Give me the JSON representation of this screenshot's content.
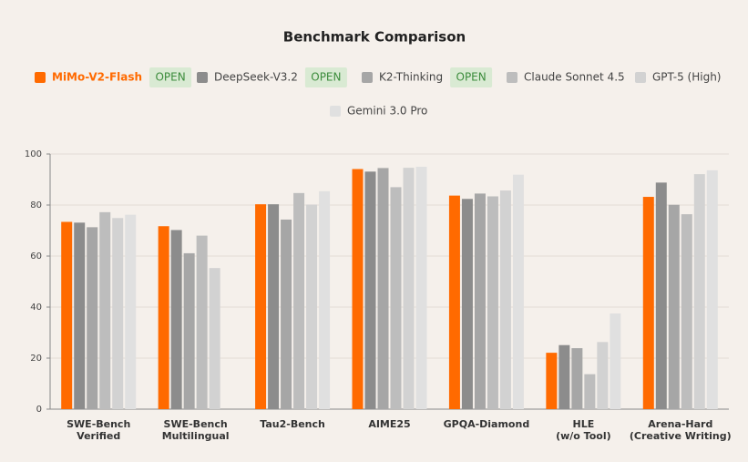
{
  "chart_data": {
    "type": "bar",
    "title": "Benchmark Comparison",
    "categories": [
      "SWE-Bench\nVerified",
      "SWE-Bench\nMultilingual",
      "Tau2-Bench",
      "AIME25",
      "GPQA-Diamond",
      "HLE\n(w/o Tool)",
      "Arena-Hard\n(Creative Writing)"
    ],
    "series": [
      {
        "name": "MiMo-V2-Flash",
        "color": "#ff6a00",
        "badge": "OPEN",
        "values": [
          73.4,
          71.7,
          80.3,
          94.1,
          83.7,
          22.1,
          83.2
        ]
      },
      {
        "name": "DeepSeek-V3.2",
        "color": "#8c8c8c",
        "badge": "OPEN",
        "values": [
          73.1,
          70.2,
          80.3,
          93.1,
          82.4,
          25.1,
          88.8
        ]
      },
      {
        "name": "K2-Thinking",
        "color": "#a6a6a6",
        "badge": "OPEN",
        "values": [
          71.3,
          61.1,
          74.3,
          94.5,
          84.5,
          23.9,
          80.1
        ]
      },
      {
        "name": "Claude Sonnet 4.5",
        "color": "#bdbdbd",
        "values": [
          77.2,
          68.0,
          84.7,
          87.0,
          83.4,
          13.7,
          76.4
        ]
      },
      {
        "name": "GPT-5 (High)",
        "color": "#d2d2d2",
        "values": [
          74.9,
          55.3,
          80.2,
          94.6,
          85.7,
          26.3,
          92.1
        ]
      },
      {
        "name": "Gemini 3.0 Pro",
        "color": "#e0e0e0",
        "values": [
          76.2,
          null,
          85.4,
          95.0,
          91.9,
          37.5,
          93.6
        ]
      }
    ],
    "ylim": [
      0,
      100
    ],
    "yticks": [
      0,
      20,
      40,
      60,
      80,
      100
    ],
    "grid": true
  }
}
